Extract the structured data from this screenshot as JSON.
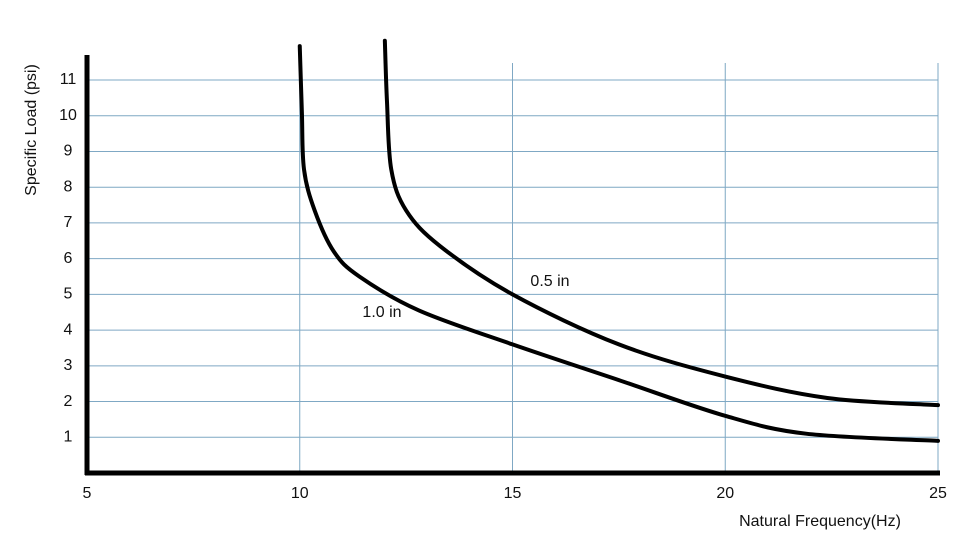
{
  "chart_data": {
    "type": "line",
    "x_label": "Natural Frequency(Hz)",
    "y_label": "Specific Load (psi)",
    "xlim": [
      5,
      25
    ],
    "xticks": [
      5,
      10,
      15,
      20,
      25
    ],
    "ylim": [
      0,
      11.7
    ],
    "yticks": [
      1,
      2,
      3,
      4,
      5,
      6,
      7,
      8,
      9,
      10,
      11
    ],
    "grid": true,
    "series": [
      {
        "name": "1.0 in",
        "color": "#000000",
        "x": [
          10.0,
          10.05,
          10.1,
          10.35,
          10.8,
          11.4,
          12.8,
          15.0,
          17.5,
          20.0,
          21.9,
          25.0
        ],
        "values": [
          11.95,
          10.1,
          8.5,
          7.35,
          6.2,
          5.5,
          4.55,
          3.6,
          2.6,
          1.6,
          1.1,
          0.9
        ]
      },
      {
        "name": "0.5 in",
        "color": "#000000",
        "x": [
          12.0,
          12.05,
          12.15,
          12.5,
          13.3,
          15.0,
          17.5,
          20.0,
          22.4,
          25.0
        ],
        "values": [
          12.1,
          10.4,
          8.5,
          7.35,
          6.35,
          5.0,
          3.6,
          2.7,
          2.1,
          1.9
        ]
      }
    ]
  }
}
